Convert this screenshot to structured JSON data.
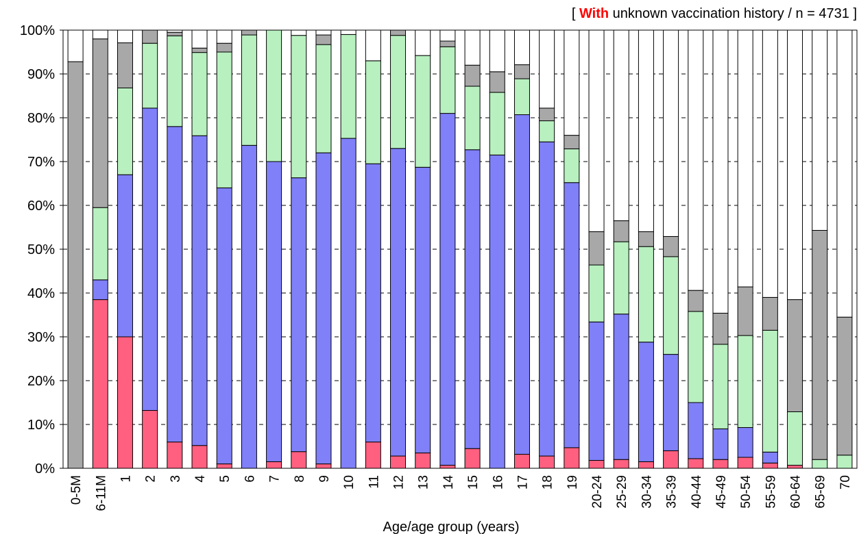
{
  "chart_data": {
    "type": "bar",
    "stacked": true,
    "xlabel": "Age/age group (years)",
    "ylim": [
      0,
      100
    ],
    "y_ticks": [
      "0%",
      "10%",
      "20%",
      "30%",
      "40%",
      "50%",
      "60%",
      "70%",
      "80%",
      "90%",
      "100%"
    ],
    "grid": "horizontal dashed",
    "annotation": {
      "open": "[ ",
      "highlight": "With",
      "rest": " unknown vaccination history  / n = 4731 ]",
      "highlight_color": "#ff0000"
    },
    "colors": [
      "#ff6080",
      "#8080f8",
      "#b8f0c0",
      "#a8a8a8"
    ],
    "categories": [
      "0-5M",
      "6-11M",
      "1",
      "2",
      "3",
      "4",
      "5",
      "6",
      "7",
      "8",
      "9",
      "10",
      "11",
      "12",
      "13",
      "14",
      "15",
      "16",
      "17",
      "18",
      "19",
      "20-24",
      "25-29",
      "30-34",
      "35-39",
      "40-44",
      "45-49",
      "50-54",
      "55-59",
      "60-64",
      "65-69",
      "70"
    ],
    "series": [
      {
        "values": [
          0,
          38.5,
          30,
          13.2,
          6,
          5.2,
          1,
          0,
          1.5,
          3.8,
          1,
          0,
          6,
          2.8,
          3.5,
          0.7,
          4.5,
          0,
          3.2,
          2.8,
          4.7,
          1.8,
          2,
          1.5,
          4,
          2.2,
          2,
          2.5,
          1.2,
          0.7,
          0,
          0
        ]
      },
      {
        "values": [
          0,
          4.5,
          37,
          69,
          72,
          70.7,
          63,
          73.7,
          68.5,
          62.5,
          71,
          75.3,
          63.5,
          70.2,
          65.2,
          80.3,
          68.2,
          71.5,
          77.5,
          71.7,
          60.5,
          31.6,
          33.2,
          27.3,
          22,
          12.8,
          7,
          6.8,
          2.5,
          0,
          0,
          0
        ]
      },
      {
        "values": [
          0,
          16.5,
          19.8,
          14.8,
          20.7,
          19,
          31,
          25.2,
          30,
          32.5,
          24.7,
          23.7,
          23.5,
          25.8,
          25.5,
          15.2,
          14.5,
          14.3,
          8.2,
          4.8,
          7.7,
          13,
          16.5,
          21.8,
          22.3,
          20.8,
          19.3,
          21,
          27.8,
          12.2,
          2,
          3
        ]
      },
      {
        "values": [
          92.8,
          38.5,
          10.3,
          3,
          0.8,
          1,
          2,
          1.1,
          0,
          0,
          2.2,
          0,
          0,
          1.2,
          0,
          1.3,
          4.8,
          4.7,
          3.2,
          2.9,
          3.1,
          7.6,
          4.8,
          3.4,
          4.6,
          4.8,
          7.1,
          11.1,
          7.5,
          25.6,
          52.3,
          31.5
        ]
      }
    ]
  }
}
